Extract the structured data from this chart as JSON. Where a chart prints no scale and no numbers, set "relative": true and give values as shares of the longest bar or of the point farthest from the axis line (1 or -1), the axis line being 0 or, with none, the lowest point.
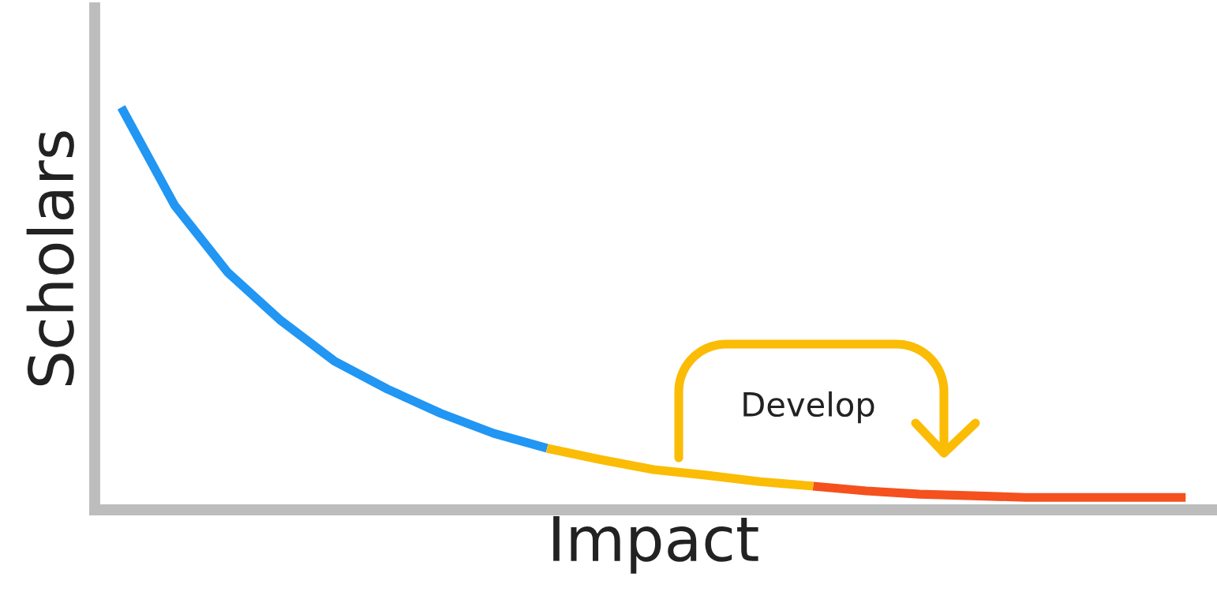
{
  "chart_data": {
    "type": "line",
    "relative": true,
    "xlabel": "Impact",
    "ylabel": "Scholars",
    "annotations": [
      "Develop"
    ],
    "legend": false,
    "marker": "none",
    "line_style": "solid",
    "categories": [
      null,
      null,
      null,
      null,
      null,
      null,
      null,
      null,
      null,
      null,
      null,
      null,
      null,
      null,
      null,
      null,
      null,
      null,
      null,
      null,
      null
    ],
    "series": [
      {
        "color": "#2196f3",
        "values": [
          1.0,
          0.757,
          0.59,
          0.47,
          0.37,
          0.3,
          0.24,
          0.19,
          0.153,
          null,
          null,
          null,
          null,
          null,
          null,
          null,
          null,
          null,
          null,
          null,
          null
        ]
      },
      {
        "color": "#fbbc05",
        "values": [
          null,
          null,
          null,
          null,
          null,
          null,
          null,
          null,
          0.153,
          0.125,
          0.1,
          0.086,
          0.07,
          0.059,
          null,
          null,
          null,
          null,
          null,
          null,
          null
        ]
      },
      {
        "color": "#f4511e",
        "values": [
          null,
          null,
          null,
          null,
          null,
          null,
          null,
          null,
          null,
          null,
          null,
          null,
          null,
          0.059,
          0.047,
          0.039,
          0.035,
          0.031,
          0.031,
          0.031,
          0.031
        ]
      }
    ]
  }
}
